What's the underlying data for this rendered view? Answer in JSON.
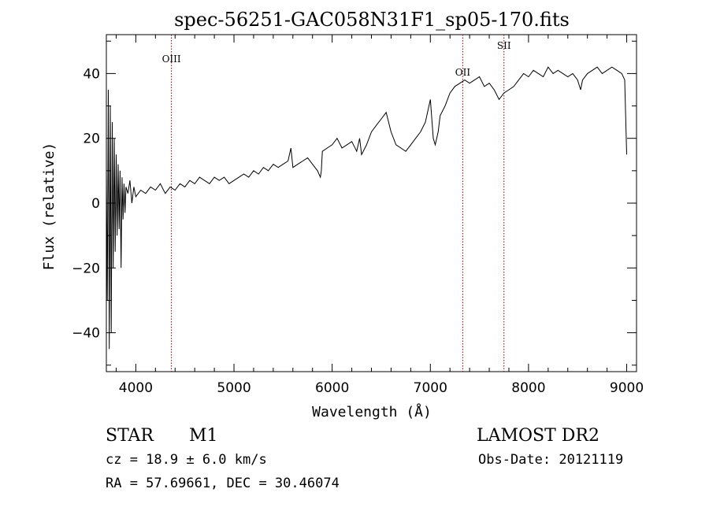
{
  "chart_data": {
    "type": "line",
    "title": "spec-56251-GAC058N31F1_sp05-170.fits",
    "xlabel": "Wavelength (Å)",
    "ylabel": "Flux (relative)",
    "xlim": [
      3700,
      9100
    ],
    "ylim": [
      -52,
      52
    ],
    "x_ticks": [
      4000,
      5000,
      6000,
      7000,
      8000,
      9000
    ],
    "y_ticks": [
      -40,
      -20,
      0,
      20,
      40
    ],
    "grid": false,
    "series": [
      {
        "x": [
          3700,
          3710,
          3720,
          3730,
          3740,
          3750,
          3760,
          3770,
          3780,
          3790,
          3800,
          3810,
          3820,
          3830,
          3840,
          3850,
          3860,
          3870,
          3880,
          3890,
          3900,
          3920,
          3940,
          3960,
          3980,
          4000,
          4050,
          4100,
          4150,
          4200,
          4250,
          4300,
          4350,
          4400,
          4450,
          4500,
          4550,
          4600,
          4650,
          4700,
          4750,
          4800,
          4850,
          4900,
          4950,
          5000,
          5050,
          5100,
          5150,
          5200,
          5250,
          5300,
          5350,
          5400,
          5450,
          5500,
          5550,
          5580,
          5600,
          5650,
          5700,
          5750,
          5800,
          5850,
          5880,
          5890,
          5900,
          5950,
          6000,
          6050,
          6100,
          6150,
          6200,
          6250,
          6280,
          6300,
          6350,
          6400,
          6450,
          6500,
          6550,
          6600,
          6650,
          6700,
          6750,
          6800,
          6850,
          6900,
          6950,
          7000,
          7030,
          7050,
          7080,
          7100,
          7150,
          7200,
          7250,
          7300,
          7350,
          7400,
          7450,
          7500,
          7550,
          7600,
          7650,
          7700,
          7750,
          7800,
          7850,
          7900,
          7950,
          8000,
          8050,
          8100,
          8150,
          8200,
          8250,
          8300,
          8350,
          8400,
          8450,
          8500,
          8530,
          8550,
          8600,
          8650,
          8700,
          8750,
          8800,
          8850,
          8900,
          8950,
          8980,
          9000
        ],
        "y": [
          10,
          -30,
          35,
          -45,
          30,
          -40,
          25,
          -20,
          20,
          -15,
          15,
          -10,
          12,
          -8,
          10,
          -20,
          8,
          -5,
          6,
          -3,
          5,
          3,
          7,
          0,
          5,
          2,
          4,
          3,
          5,
          4,
          6,
          3,
          5,
          4,
          6,
          5,
          7,
          6,
          8,
          7,
          6,
          8,
          7,
          8,
          6,
          7,
          8,
          9,
          8,
          10,
          9,
          11,
          10,
          12,
          11,
          12,
          13,
          17,
          11,
          12,
          13,
          14,
          12,
          10,
          8,
          10,
          16,
          17,
          18,
          20,
          17,
          18,
          19,
          16,
          20,
          15,
          18,
          22,
          24,
          26,
          28,
          22,
          18,
          17,
          16,
          18,
          20,
          22,
          25,
          32,
          20,
          18,
          22,
          27,
          30,
          34,
          36,
          37,
          38,
          37,
          38,
          39,
          36,
          37,
          35,
          32,
          34,
          35,
          36,
          38,
          40,
          39,
          41,
          40,
          39,
          42,
          40,
          41,
          40,
          39,
          40,
          38,
          35,
          38,
          40,
          41,
          42,
          40,
          41,
          42,
          41,
          40,
          38,
          15
        ]
      }
    ],
    "annotations": [
      {
        "label": "OIII",
        "x": 4363
      },
      {
        "label": "OII",
        "x": 7330
      },
      {
        "label": "SII",
        "x": 7750
      }
    ]
  },
  "footer": {
    "object_type": "STAR",
    "subclass": "M1",
    "survey": "LAMOST DR2",
    "velocity": "cz = 18.9 ± 6.0 km/s",
    "obs_date": "Obs-Date: 20121119",
    "coords": "RA =  57.69661, DEC =  30.46074"
  }
}
